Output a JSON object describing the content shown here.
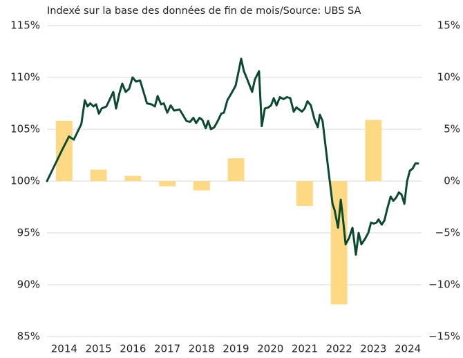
{
  "chart_data": {
    "type": "combo",
    "title": "Indexé sur la base des données de fin de mois/Source: UBS SA",
    "xlim": [
      2013.5,
      2024.4
    ],
    "xticks": [
      2014,
      2015,
      2016,
      2017,
      2018,
      2019,
      2020,
      2021,
      2022,
      2023,
      2024
    ],
    "ylim": [
      85,
      115
    ],
    "yticks": [
      {
        "value": 85,
        "label": "85%"
      },
      {
        "value": 90,
        "label": "90%"
      },
      {
        "value": 95,
        "label": "95%"
      },
      {
        "value": 100,
        "label": "100%"
      },
      {
        "value": 105,
        "label": "105%"
      },
      {
        "value": 110,
        "label": "110%"
      },
      {
        "value": 115,
        "label": "115%"
      }
    ],
    "y2lim": [
      -15,
      15
    ],
    "y2ticks": [
      {
        "value": -15,
        "label": "−15%"
      },
      {
        "value": -10,
        "label": "−10%"
      },
      {
        "value": -5,
        "label": "−5%"
      },
      {
        "value": 0,
        "label": "0%"
      },
      {
        "value": 5,
        "label": "5%"
      },
      {
        "value": 10,
        "label": "10%"
      },
      {
        "value": 15,
        "label": "15%"
      }
    ],
    "grid": true,
    "series": [
      {
        "type": "bar",
        "axis": "y2",
        "color": "#fdd983",
        "x": [
          2014,
          2015,
          2016,
          2017,
          2018,
          2019,
          2021,
          2022,
          2023
        ],
        "values": [
          5.8,
          1.1,
          0.5,
          -0.5,
          -0.9,
          2.2,
          -2.4,
          -11.9,
          5.9
        ]
      },
      {
        "type": "line",
        "color": "#0b4a2f",
        "x": [
          2013.5,
          2013.94,
          2014.14,
          2014.28,
          2014.5,
          2014.6,
          2014.68,
          2014.76,
          2014.85,
          2014.93,
          2015.01,
          2015.09,
          2015.23,
          2015.43,
          2015.51,
          2015.61,
          2015.69,
          2015.79,
          2015.89,
          2015.99,
          2016.09,
          2016.21,
          2016.31,
          2016.41,
          2016.54,
          2016.64,
          2016.72,
          2016.82,
          2016.9,
          2017.0,
          2017.1,
          2017.2,
          2017.36,
          2017.56,
          2017.66,
          2017.76,
          2017.84,
          2017.94,
          2018.02,
          2018.12,
          2018.19,
          2018.27,
          2018.37,
          2018.47,
          2018.57,
          2018.65,
          2018.75,
          2018.89,
          2018.99,
          2019.09,
          2019.15,
          2019.23,
          2019.33,
          2019.47,
          2019.55,
          2019.67,
          2019.75,
          2019.84,
          2019.94,
          2020.02,
          2020.1,
          2020.18,
          2020.28,
          2020.38,
          2020.48,
          2020.58,
          2020.68,
          2020.76,
          2020.84,
          2020.92,
          2021.0,
          2021.08,
          2021.18,
          2021.28,
          2021.38,
          2021.44,
          2021.52,
          2021.62,
          2021.71,
          2021.81,
          2021.87,
          2021.97,
          2022.05,
          2022.11,
          2022.19,
          2022.29,
          2022.39,
          2022.49,
          2022.57,
          2022.65,
          2022.75,
          2022.85,
          2022.93,
          2023.01,
          2023.09,
          2023.15,
          2023.24,
          2023.32,
          2023.4,
          2023.5,
          2023.58,
          2023.66,
          2023.74,
          2023.82,
          2023.9,
          2023.98,
          2024.06,
          2024.14,
          2024.22,
          2024.3
        ],
        "values": [
          100,
          103,
          104.3,
          104,
          105.5,
          107.8,
          107.2,
          107.5,
          107.2,
          107.4,
          106.5,
          107,
          107.2,
          108.6,
          107,
          108.5,
          109.4,
          108.6,
          108.9,
          110,
          109.6,
          109.7,
          108.6,
          107.5,
          107.4,
          107.2,
          108.2,
          107.4,
          107.5,
          106.6,
          107.3,
          106.8,
          106.9,
          105.8,
          105.7,
          106.1,
          105.6,
          106.1,
          105.9,
          105.1,
          105.8,
          105,
          105.2,
          105.8,
          106.5,
          106.6,
          107.8,
          108.6,
          109.2,
          110.8,
          111.8,
          110.6,
          109.8,
          108.6,
          109.8,
          110.6,
          105.3,
          107,
          107.1,
          107.3,
          108,
          107.3,
          108.1,
          107.9,
          108.1,
          108,
          106.7,
          107.1,
          106.9,
          106.7,
          107,
          107.7,
          107.3,
          106,
          105.2,
          106.4,
          105.8,
          103,
          100.5,
          97.8,
          97.2,
          95.5,
          98.2,
          96.5,
          93.9,
          94.5,
          95.5,
          92.9,
          95,
          93.9,
          94.4,
          95,
          96,
          95.9,
          96,
          96.3,
          95.8,
          96.2,
          97.3,
          98.5,
          98.1,
          98.4,
          98.9,
          98.7,
          97.8,
          100,
          101,
          101.2,
          101.7,
          101.7
        ]
      }
    ]
  }
}
